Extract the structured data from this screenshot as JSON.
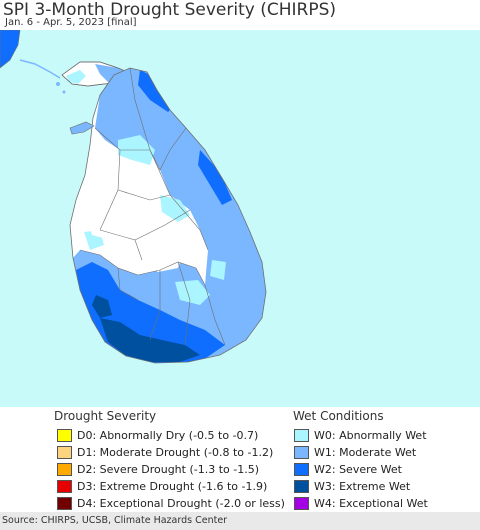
{
  "header": {
    "title": "SPI 3-Month Drought Severity (CHIRPS)",
    "subtitle": "Jan. 6 - Apr. 5, 2023 [final]"
  },
  "map": {
    "region": "Sri Lanka",
    "ocean_color": "#c8fafa",
    "land_dry_color": "#ffffff",
    "boundary_color": "#6e6e6e"
  },
  "legend": {
    "drought_title": "Drought Severity",
    "drought": [
      {
        "label": "D0: Abnormally Dry (-0.5 to -0.7)",
        "color": "#ffff00"
      },
      {
        "label": "D1: Moderate Drought (-0.8 to -1.2)",
        "color": "#fcd37f"
      },
      {
        "label": "D2: Severe Drought (-1.3 to -1.5)",
        "color": "#ffaa00"
      },
      {
        "label": "D3: Extreme Drought (-1.6 to -1.9)",
        "color": "#e60000"
      },
      {
        "label": "D4: Exceptional Drought (-2.0 or less)",
        "color": "#730000"
      }
    ],
    "wet_title": "Wet Conditions",
    "wet": [
      {
        "label": "W0: Abnormally Wet",
        "color": "#aaf5ff"
      },
      {
        "label": "W1: Moderate Wet",
        "color": "#7bb7ff"
      },
      {
        "label": "W2: Severe Wet",
        "color": "#0f6efe"
      },
      {
        "label": "W3: Extreme Wet",
        "color": "#0050a0"
      },
      {
        "label": "W4: Exceptional Wet",
        "color": "#a400e6"
      }
    ]
  },
  "footer": {
    "source": "Source: CHIRPS, UCSB, Climate Hazards Center"
  }
}
